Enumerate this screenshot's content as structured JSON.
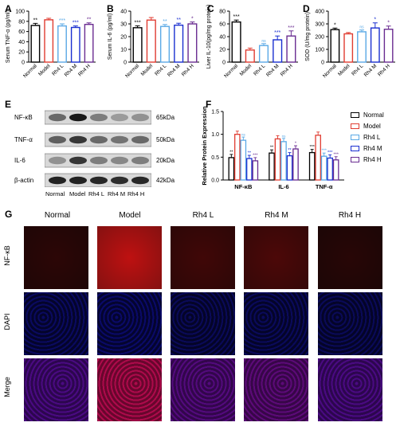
{
  "panels": {
    "A": "A",
    "B": "B",
    "C": "C",
    "D": "D",
    "E": "E",
    "F": "F",
    "G": "G"
  },
  "groups": [
    "Normal",
    "Model",
    "Rh4 L",
    "Rh4 M",
    "Rh4 H"
  ],
  "colors": {
    "Normal": "#000000",
    "Model": "#e03c31",
    "Rh4 L": "#5aa9e6",
    "Rh4 M": "#1a2fd0",
    "Rh4 H": "#6a2c91"
  },
  "chart_data": [
    {
      "panel": "A",
      "type": "bar",
      "categories": [
        "Normal",
        "Model",
        "Rh4 L",
        "Rh4 M",
        "Rh4 H"
      ],
      "values": [
        72,
        83,
        71,
        68,
        74
      ],
      "errors": [
        4,
        3,
        4,
        3,
        3
      ],
      "sig": [
        "**",
        "",
        "***",
        "***",
        "**"
      ],
      "ylabel": "Serum TNF-α (pg/ml)",
      "ylim": [
        0,
        100
      ],
      "yticks": [
        0,
        20,
        40,
        60,
        80,
        100
      ]
    },
    {
      "panel": "B",
      "type": "bar",
      "categories": [
        "Normal",
        "Model",
        "Rh4 L",
        "Rh4 M",
        "Rh4 H"
      ],
      "values": [
        27,
        33,
        28,
        29,
        30
      ],
      "errors": [
        1.5,
        2,
        1.5,
        1.5,
        1.5
      ],
      "sig": [
        "***",
        "",
        "**",
        "**",
        "*"
      ],
      "ylabel": "Serum IL-6 (pg/ml)",
      "ylim": [
        0,
        40
      ],
      "yticks": [
        0,
        10,
        20,
        30,
        40
      ]
    },
    {
      "panel": "C",
      "type": "bar",
      "categories": [
        "Normal",
        "Model",
        "Rh4 L",
        "Rh4 M",
        "Rh4 H"
      ],
      "values": [
        63,
        19,
        26,
        35,
        41
      ],
      "errors": [
        3,
        3,
        3,
        6,
        8
      ],
      "sig": [
        "***",
        "",
        "ns",
        "***",
        "***"
      ],
      "ylabel": "Liver IL-10(pg/mg protein)",
      "ylim": [
        0,
        80
      ],
      "yticks": [
        0,
        20,
        40,
        60,
        80
      ]
    },
    {
      "panel": "D",
      "type": "bar",
      "categories": [
        "Normal",
        "Model",
        "Rh4 L",
        "Rh4 M",
        "Rh4 H"
      ],
      "values": [
        255,
        222,
        238,
        268,
        258
      ],
      "errors": [
        12,
        10,
        14,
        40,
        25
      ],
      "sig": [
        "*",
        "",
        "ns",
        "*",
        "*"
      ],
      "ylabel": "SOD (U/mg protein)",
      "ylim": [
        0,
        400
      ],
      "yticks": [
        0,
        100,
        200,
        300,
        400
      ]
    },
    {
      "panel": "F",
      "type": "bar",
      "categories": [
        "NF-κB",
        "IL-6",
        "TNF-α"
      ],
      "series": [
        {
          "name": "Normal",
          "values": [
            0.49,
            0.59,
            0.6
          ],
          "sig": [
            "**",
            "**",
            "***"
          ]
        },
        {
          "name": "Model",
          "values": [
            1.0,
            0.9,
            0.98
          ],
          "sig": [
            "",
            "",
            ""
          ]
        },
        {
          "name": "Rh4 L",
          "values": [
            0.87,
            0.84,
            0.52
          ],
          "sig": [
            "ns",
            "ns",
            "***"
          ]
        },
        {
          "name": "Rh4 M",
          "values": [
            0.47,
            0.53,
            0.48
          ],
          "sig": [
            "**",
            "**",
            "***"
          ]
        },
        {
          "name": "Rh4 H",
          "values": [
            0.42,
            0.68,
            0.44
          ],
          "sig": [
            "***",
            "*",
            "***"
          ]
        }
      ],
      "ylabel": "Relative Protein Expression",
      "ylim": [
        0,
        1.5
      ],
      "yticks": [
        0.0,
        0.5,
        1.0,
        1.5
      ]
    }
  ],
  "blot": {
    "rows": [
      "NF-κB",
      "TNF-α",
      "IL-6",
      "β-actin"
    ],
    "sizes": [
      "65kDa",
      "50kDa",
      "20kDa",
      "42kDa"
    ],
    "lanes": [
      "Normal",
      "Model",
      "Rh4 L",
      "Rh4 M",
      "Rh4 H"
    ],
    "intensities": [
      [
        0.55,
        0.95,
        0.45,
        0.3,
        0.35
      ],
      [
        0.6,
        0.8,
        0.55,
        0.5,
        0.55
      ],
      [
        0.35,
        0.8,
        0.45,
        0.4,
        0.45
      ],
      [
        0.9,
        0.9,
        0.88,
        0.85,
        0.88
      ]
    ]
  },
  "fluorescence": {
    "columns": [
      "Normal",
      "Model",
      "Rh4 L",
      "Rh4 M",
      "Rh4 H"
    ],
    "rows": [
      "NF-κB",
      "DAPI",
      "Merge"
    ],
    "intensity": [
      [
        0.12,
        0.85,
        0.22,
        0.28,
        0.1
      ],
      [
        0.35,
        0.4,
        0.3,
        0.32,
        0.3
      ],
      [
        0.3,
        0.85,
        0.35,
        0.4,
        0.3
      ]
    ]
  }
}
